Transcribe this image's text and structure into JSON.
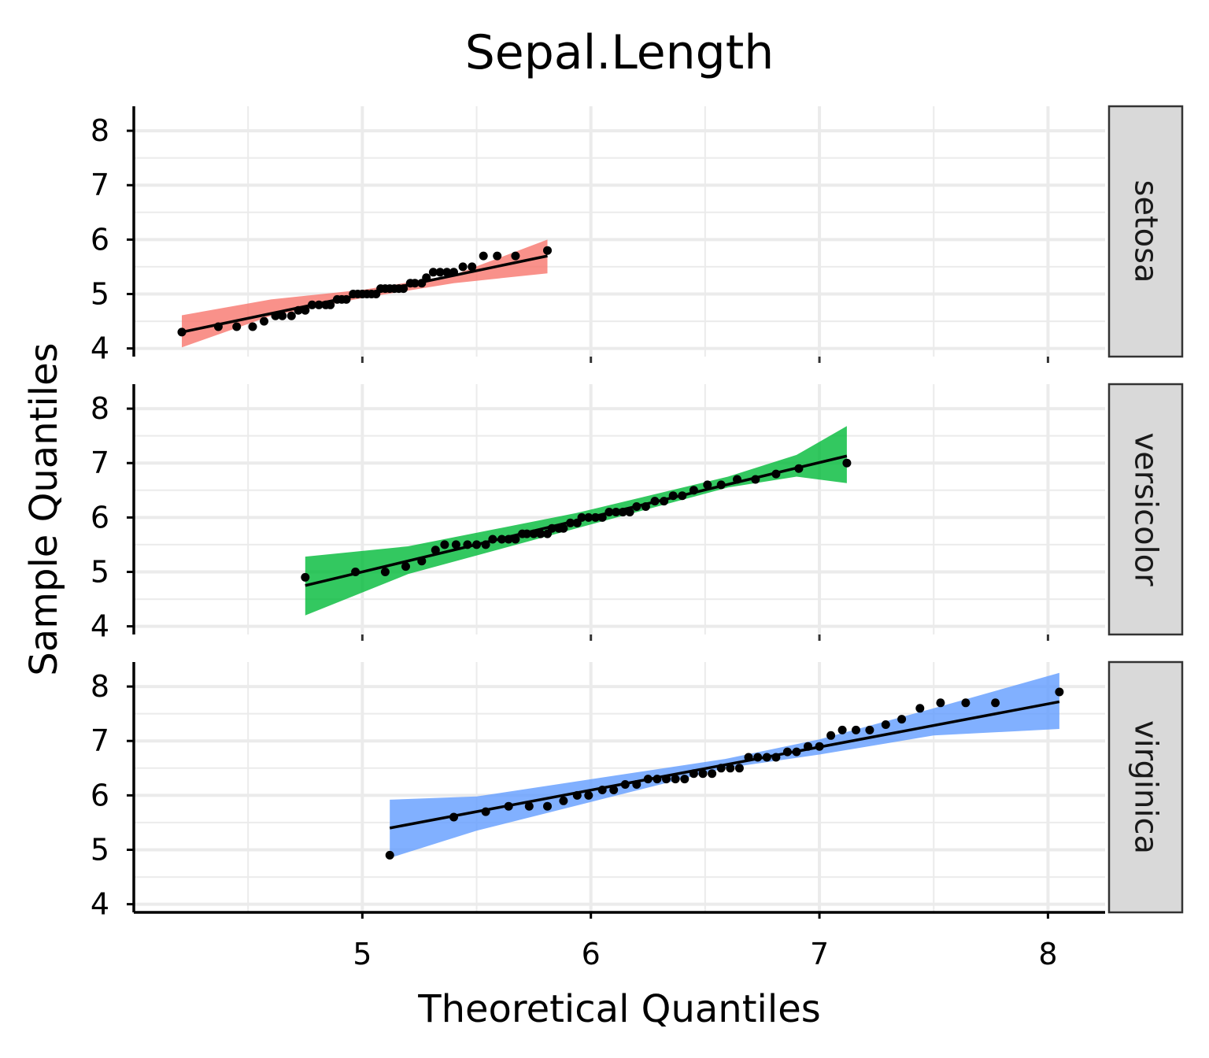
{
  "chart_data": {
    "type": "scatter",
    "title": "Sepal.Length",
    "xlabel": "Theoretical Quantiles",
    "ylabel": "Sample Quantiles",
    "xlim": [
      4.0,
      8.25
    ],
    "ylim": [
      3.85,
      8.45
    ],
    "xticks": [
      5,
      6,
      7,
      8
    ],
    "yticks": [
      4,
      5,
      6,
      7,
      8
    ],
    "grid": true,
    "line_color": "#000000",
    "point_color": "#000000",
    "panels": [
      {
        "name": "setosa",
        "band_color": "#F8766D",
        "line": {
          "x": [
            4.21,
            5.81
          ],
          "y": [
            4.3,
            5.7
          ]
        },
        "band": {
          "x": [
            4.21,
            4.6,
            5.006,
            5.4,
            5.81
          ],
          "upper": [
            4.61,
            4.9,
            5.08,
            5.35,
            6.0
          ],
          "lower": [
            4.02,
            4.6,
            4.93,
            5.2,
            5.38
          ]
        },
        "points": {
          "x": [
            4.21,
            4.37,
            4.45,
            4.52,
            4.57,
            4.62,
            4.65,
            4.69,
            4.72,
            4.75,
            4.78,
            4.81,
            4.84,
            4.86,
            4.89,
            4.91,
            4.93,
            4.96,
            4.98,
            5.0,
            5.02,
            5.04,
            5.06,
            5.08,
            5.1,
            5.12,
            5.14,
            5.16,
            5.18,
            5.21,
            5.23,
            5.26,
            5.28,
            5.31,
            5.34,
            5.37,
            5.4,
            5.44,
            5.48,
            5.53,
            5.59,
            5.67,
            5.81
          ],
          "y": [
            4.3,
            4.4,
            4.4,
            4.4,
            4.5,
            4.6,
            4.6,
            4.6,
            4.7,
            4.7,
            4.8,
            4.8,
            4.8,
            4.8,
            4.9,
            4.9,
            4.9,
            5.0,
            5.0,
            5.0,
            5.0,
            5.0,
            5.0,
            5.1,
            5.1,
            5.1,
            5.1,
            5.1,
            5.1,
            5.2,
            5.2,
            5.2,
            5.3,
            5.4,
            5.4,
            5.4,
            5.4,
            5.5,
            5.5,
            5.7,
            5.7,
            5.7,
            5.8
          ]
        }
      },
      {
        "name": "versicolor",
        "band_color": "#00BA38",
        "line": {
          "x": [
            4.75,
            7.12
          ],
          "y": [
            4.75,
            7.13
          ]
        },
        "band": {
          "x": [
            4.75,
            5.2,
            5.936,
            6.6,
            6.9,
            7.12
          ],
          "upper": [
            5.28,
            5.47,
            6.08,
            6.75,
            7.15,
            7.68
          ],
          "lower": [
            4.2,
            4.96,
            5.8,
            6.55,
            6.75,
            6.63
          ]
        },
        "points": {
          "x": [
            4.75,
            4.97,
            5.1,
            5.19,
            5.26,
            5.32,
            5.36,
            5.41,
            5.46,
            5.5,
            5.54,
            5.57,
            5.61,
            5.64,
            5.67,
            5.7,
            5.72,
            5.75,
            5.78,
            5.81,
            5.83,
            5.86,
            5.88,
            5.91,
            5.94,
            5.96,
            5.99,
            6.02,
            6.05,
            6.08,
            6.11,
            6.14,
            6.17,
            6.2,
            6.24,
            6.28,
            6.32,
            6.36,
            6.4,
            6.45,
            6.51,
            6.57,
            6.64,
            6.72,
            6.81,
            6.91,
            7.12
          ],
          "y": [
            4.9,
            5.0,
            5.0,
            5.1,
            5.2,
            5.4,
            5.5,
            5.5,
            5.5,
            5.5,
            5.5,
            5.6,
            5.6,
            5.6,
            5.6,
            5.7,
            5.7,
            5.7,
            5.7,
            5.7,
            5.8,
            5.8,
            5.8,
            5.9,
            5.9,
            6.0,
            6.0,
            6.0,
            6.0,
            6.1,
            6.1,
            6.1,
            6.1,
            6.2,
            6.2,
            6.3,
            6.3,
            6.4,
            6.4,
            6.5,
            6.6,
            6.6,
            6.7,
            6.7,
            6.8,
            6.9,
            7.0
          ]
        }
      },
      {
        "name": "virginica",
        "band_color": "#619CFF",
        "line": {
          "x": [
            5.12,
            8.05
          ],
          "y": [
            5.4,
            7.72
          ]
        },
        "band": {
          "x": [
            5.12,
            5.5,
            6.588,
            7.0,
            7.5,
            8.05
          ],
          "upper": [
            5.92,
            5.98,
            6.67,
            7.03,
            7.6,
            8.25
          ],
          "lower": [
            4.85,
            5.35,
            6.5,
            6.75,
            7.1,
            7.22
          ]
        },
        "points": {
          "x": [
            5.12,
            5.4,
            5.54,
            5.64,
            5.73,
            5.81,
            5.88,
            5.94,
            5.99,
            6.05,
            6.1,
            6.15,
            6.2,
            6.25,
            6.29,
            6.33,
            6.37,
            6.41,
            6.45,
            6.49,
            6.53,
            6.57,
            6.61,
            6.65,
            6.69,
            6.73,
            6.77,
            6.81,
            6.86,
            6.9,
            6.95,
            7.0,
            7.05,
            7.1,
            7.16,
            7.22,
            7.29,
            7.36,
            7.44,
            7.53,
            7.64,
            7.77,
            8.05
          ],
          "y": [
            4.9,
            5.6,
            5.7,
            5.8,
            5.8,
            5.8,
            5.9,
            6.0,
            6.0,
            6.1,
            6.1,
            6.2,
            6.2,
            6.3,
            6.3,
            6.3,
            6.3,
            6.3,
            6.4,
            6.4,
            6.4,
            6.5,
            6.5,
            6.5,
            6.7,
            6.7,
            6.7,
            6.7,
            6.8,
            6.8,
            6.9,
            6.9,
            7.1,
            7.2,
            7.2,
            7.2,
            7.3,
            7.4,
            7.6,
            7.7,
            7.7,
            7.7,
            7.9
          ]
        }
      }
    ]
  }
}
